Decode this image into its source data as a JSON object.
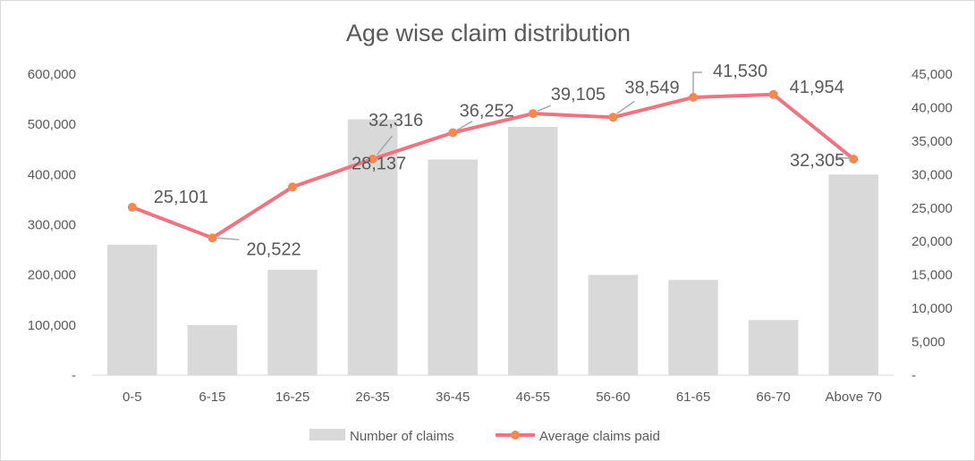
{
  "chart_data": {
    "type": "bar+line",
    "title": "Age wise claim distribution",
    "categories": [
      "0-5",
      "6-15",
      "16-25",
      "26-35",
      "36-45",
      "46-55",
      "56-60",
      "61-65",
      "66-70",
      "Above 70"
    ],
    "series": [
      {
        "name": "Number of claims",
        "type": "bar",
        "axis": "left",
        "color": "#d9d9d9",
        "values": [
          260000,
          100000,
          210000,
          510000,
          430000,
          495000,
          200000,
          190000,
          110000,
          400000
        ]
      },
      {
        "name": "Average claims paid",
        "type": "line",
        "axis": "right",
        "color": "#f07382",
        "marker_color": "#f4894f",
        "values": [
          25101,
          20522,
          28137,
          32316,
          36252,
          39105,
          38549,
          41530,
          41954,
          32305
        ],
        "labels": [
          "25,101",
          "20,522",
          "28,137",
          "32,316",
          "36,252",
          "39,105",
          "38,549",
          "41,530",
          "41,954",
          "32,305"
        ]
      }
    ],
    "y_left": {
      "range": [
        0,
        600000
      ],
      "tick_labels": [
        "-",
        "100,000",
        "200,000",
        "300,000",
        "400,000",
        "500,000",
        "600,000"
      ]
    },
    "y_right": {
      "range": [
        0,
        45000
      ],
      "tick_labels": [
        "-",
        "5,000",
        "10,000",
        "15,000",
        "20,000",
        "25,000",
        "30,000",
        "35,000",
        "40,000",
        "45,000"
      ]
    },
    "grid": false,
    "legend": "bottom"
  }
}
